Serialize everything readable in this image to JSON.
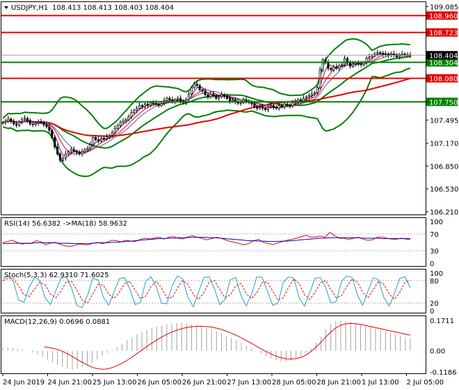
{
  "chart_data": [
    {
      "type": "candlestick",
      "title": "USDJPY,H1",
      "quote": "108.413 108.413 108.403 108.404",
      "ylim": [
        106.21,
        109.1
      ],
      "yticks": [
        "109.085",
        "108.960",
        "108.723",
        "108.404",
        "108.304",
        "108.080",
        "107.750",
        "107.495",
        "107.170",
        "106.850",
        "106.530",
        "106.210"
      ],
      "grid": false,
      "price_values": [
        107.46,
        107.48,
        107.51,
        107.48,
        107.44,
        107.42,
        107.47,
        107.5,
        107.52,
        107.49,
        107.44,
        107.43,
        107.45,
        107.47,
        107.46,
        107.43,
        107.4,
        107.35,
        107.25,
        107.12,
        107.02,
        106.93,
        106.96,
        107.02,
        107.05,
        107.08,
        107.06,
        107.04,
        107.02,
        107.05,
        107.08,
        107.1,
        107.15,
        107.25,
        107.22,
        107.2,
        107.24,
        107.23,
        107.26,
        107.28,
        107.32,
        107.38,
        107.42,
        107.46,
        107.48,
        107.5,
        107.54,
        107.6,
        107.63,
        107.66,
        107.7,
        107.68,
        107.72,
        107.7,
        107.74,
        107.73,
        107.72,
        107.7,
        107.73,
        107.77,
        107.8,
        107.78,
        107.75,
        107.78,
        107.8,
        107.76,
        107.74,
        107.78,
        107.86,
        107.95,
        108.0,
        107.98,
        107.92,
        107.9,
        107.85,
        107.82,
        107.86,
        107.84,
        107.8,
        107.82,
        107.85,
        107.83,
        107.8,
        107.76,
        107.78,
        107.75,
        107.73,
        107.74,
        107.78,
        107.76,
        107.74,
        107.72,
        107.68,
        107.66,
        107.68,
        107.66,
        107.64,
        107.68,
        107.7,
        107.67,
        107.66,
        107.7,
        107.68,
        107.72,
        107.71,
        107.69,
        107.74,
        107.75,
        107.78,
        107.76,
        107.8,
        107.82,
        107.84,
        107.86,
        107.88,
        107.95,
        108.2,
        108.34,
        108.3,
        108.22,
        108.2,
        108.24,
        108.22,
        108.26,
        108.27,
        108.36,
        108.3,
        108.25,
        108.28,
        108.3,
        108.28,
        108.27,
        108.3,
        108.36,
        108.38,
        108.4,
        108.42,
        108.44,
        108.43,
        108.41,
        108.42,
        108.4,
        108.42,
        108.41,
        108.38,
        108.4,
        108.42,
        108.41,
        108.4,
        108.404
      ],
      "horizontal_levels": [
        {
          "value": 108.96,
          "label": "108.960",
          "color": "#e60000"
        },
        {
          "value": 108.723,
          "label": "108.723",
          "color": "#e60000"
        },
        {
          "value": 108.304,
          "label": "108.304",
          "color": "#008000"
        },
        {
          "value": 108.08,
          "label": "108.080",
          "color": "#e60000"
        },
        {
          "value": 107.75,
          "label": "107.750",
          "color": "#008000"
        }
      ],
      "current_price": {
        "value": 108.404,
        "label": "108.404",
        "color": "#000000"
      },
      "colors": {
        "ma_long": "#e60000",
        "bands": "#008000",
        "bullish": "#ffffff",
        "bearish": "#000000",
        "ma_fast_red": "#e60000",
        "ma_fast_purple": "#800080"
      }
    },
    {
      "type": "line",
      "title": "RSI(14) 56.6382  ->MA(18) 58.9632",
      "ylim": [
        0,
        100
      ],
      "yticks": [
        "100",
        "70",
        "30",
        "0"
      ],
      "levels": [
        70,
        30
      ],
      "series": [
        {
          "name": "RSI(14)",
          "color": "#e60000",
          "values": [
            49,
            52,
            55,
            50,
            46,
            48,
            47,
            54,
            52,
            44,
            48,
            50,
            46,
            42,
            40,
            42,
            46,
            45,
            44,
            48,
            50,
            47,
            50,
            55,
            54,
            51,
            55,
            53,
            52,
            57,
            60,
            58,
            60,
            62,
            58,
            62,
            64,
            60,
            58,
            63,
            66,
            62,
            60,
            56,
            59,
            62,
            60,
            56,
            52,
            50,
            47,
            44,
            48,
            54,
            57,
            50,
            47,
            45,
            48,
            52,
            55,
            57,
            60,
            64,
            67,
            62,
            63,
            65,
            62,
            74,
            66,
            60,
            60,
            57,
            60,
            62,
            58,
            55,
            56,
            62,
            63,
            60,
            58,
            57,
            60,
            58,
            57
          ]
        },
        {
          "name": "MA(18)",
          "color": "#0000c8",
          "values": [
            47,
            47,
            48,
            48,
            48,
            48,
            48,
            49,
            49,
            49,
            49,
            49,
            48,
            48,
            48,
            47,
            47,
            47,
            47,
            48,
            49,
            49,
            49,
            50,
            50,
            51,
            52,
            53,
            54,
            55,
            56,
            57,
            58,
            59,
            59,
            60,
            60,
            61,
            61,
            61,
            62,
            62,
            62,
            62,
            61,
            61,
            60,
            59,
            58,
            57,
            56,
            55,
            54,
            54,
            53,
            53,
            52,
            52,
            52,
            53,
            53,
            54,
            55,
            56,
            57,
            58,
            59,
            60,
            60,
            61,
            61,
            61,
            61,
            61,
            61,
            61,
            60,
            60,
            60,
            60,
            59,
            59,
            59,
            59,
            59,
            59,
            59
          ]
        }
      ]
    },
    {
      "type": "line",
      "title": "Stoch(5,3,3) 62.9310 71.6025",
      "ylim": [
        0,
        100
      ],
      "yticks": [
        "100",
        "80",
        "20",
        "0"
      ],
      "levels": [
        80,
        20
      ],
      "series": [
        {
          "name": "%K",
          "color": "#20a0c8",
          "values": [
            86,
            92,
            78,
            28,
            22,
            62,
            88,
            80,
            34,
            16,
            52,
            86,
            90,
            60,
            14,
            8,
            40,
            86,
            82,
            36,
            14,
            48,
            84,
            88,
            58,
            16,
            22,
            78,
            90,
            64,
            20,
            18,
            66,
            92,
            84,
            34,
            10,
            50,
            88,
            90,
            58,
            16,
            30,
            82,
            88,
            40,
            12,
            44,
            90,
            88,
            52,
            14,
            20,
            76,
            90,
            86,
            34,
            12,
            48,
            86,
            88,
            62,
            20,
            24,
            78,
            92,
            88,
            42,
            14,
            52,
            88,
            82,
            36,
            12,
            46,
            86,
            90,
            60
          ]
        },
        {
          "name": "%D",
          "color": "#e60000",
          "values": [
            80,
            86,
            86,
            66,
            42,
            38,
            58,
            76,
            68,
            44,
            34,
            52,
            76,
            78,
            54,
            28,
            20,
            44,
            70,
            68,
            44,
            32,
            48,
            72,
            78,
            54,
            32,
            38,
            64,
            78,
            60,
            34,
            34,
            60,
            80,
            70,
            42,
            30,
            48,
            76,
            80,
            56,
            34,
            42,
            66,
            72,
            46,
            32,
            48,
            74,
            76,
            52,
            28,
            34,
            62,
            84,
            72,
            42,
            30,
            48,
            74,
            80,
            56,
            34,
            40,
            64,
            84,
            76,
            48,
            34,
            56,
            78,
            70,
            44,
            30,
            48,
            76,
            80
          ]
        }
      ]
    },
    {
      "type": "bar",
      "title": "MACD(12,26,9) 0.0696 0.0881",
      "ylim": [
        -0.1186,
        0.1711
      ],
      "yticks": [
        "0.1711",
        "0.00",
        "-0.1186"
      ],
      "histogram": [
        0.02,
        0.018,
        0.016,
        0.012,
        0.006,
        0.0,
        -0.01,
        -0.02,
        -0.035,
        -0.05,
        -0.065,
        -0.08,
        -0.09,
        -0.1,
        -0.105,
        -0.1,
        -0.092,
        -0.08,
        -0.065,
        -0.048,
        -0.03,
        -0.012,
        0.005,
        0.022,
        0.04,
        0.058,
        0.075,
        0.092,
        0.105,
        0.118,
        0.128,
        0.136,
        0.142,
        0.148,
        0.152,
        0.155,
        0.156,
        0.154,
        0.15,
        0.145,
        0.138,
        0.13,
        0.12,
        0.11,
        0.098,
        0.085,
        0.072,
        0.058,
        0.045,
        0.03,
        0.015,
        0.0,
        -0.015,
        -0.03,
        -0.042,
        -0.052,
        -0.058,
        -0.06,
        -0.056,
        -0.045,
        -0.03,
        -0.01,
        0.015,
        0.045,
        0.08,
        0.12,
        0.15,
        0.168,
        0.17,
        0.168,
        0.162,
        0.155,
        0.148,
        0.14,
        0.132,
        0.125,
        0.118,
        0.11,
        0.1,
        0.092,
        0.085,
        0.076,
        0.07
      ],
      "signal": [
        0.022,
        0.018,
        0.012,
        0.004,
        -0.008,
        -0.022,
        -0.038,
        -0.055,
        -0.07,
        -0.085,
        -0.096,
        -0.102,
        -0.104,
        -0.1,
        -0.092,
        -0.08,
        -0.065,
        -0.048,
        -0.03,
        -0.01,
        0.01,
        0.03,
        0.048,
        0.066,
        0.082,
        0.096,
        0.108,
        0.118,
        0.126,
        0.132,
        0.136,
        0.138,
        0.138,
        0.136,
        0.132,
        0.126,
        0.118,
        0.108,
        0.097,
        0.084,
        0.07,
        0.055,
        0.04,
        0.024,
        0.008,
        -0.006,
        -0.02,
        -0.032,
        -0.04,
        -0.045,
        -0.046,
        -0.044,
        -0.036,
        -0.022,
        -0.002,
        0.022,
        0.05,
        0.08,
        0.108,
        0.13,
        0.145,
        0.152,
        0.154,
        0.152,
        0.148,
        0.142,
        0.136,
        0.13,
        0.124,
        0.118,
        0.112,
        0.106,
        0.1,
        0.094,
        0.088
      ],
      "signal_color": "#e60000",
      "bar_color": "#a0a0a0"
    }
  ],
  "x_axis": {
    "tick_labels": [
      "24 Jun 2019",
      "24 Jun 21:00",
      "25 Jun 13:00",
      "26 Jun 05:00",
      "26 Jun 21:00",
      "27 Jun 13:00",
      "28 Jun 05:00",
      "28 Jun 21:00",
      "1 Jul 13:00",
      "2 Jul 05:00"
    ]
  }
}
